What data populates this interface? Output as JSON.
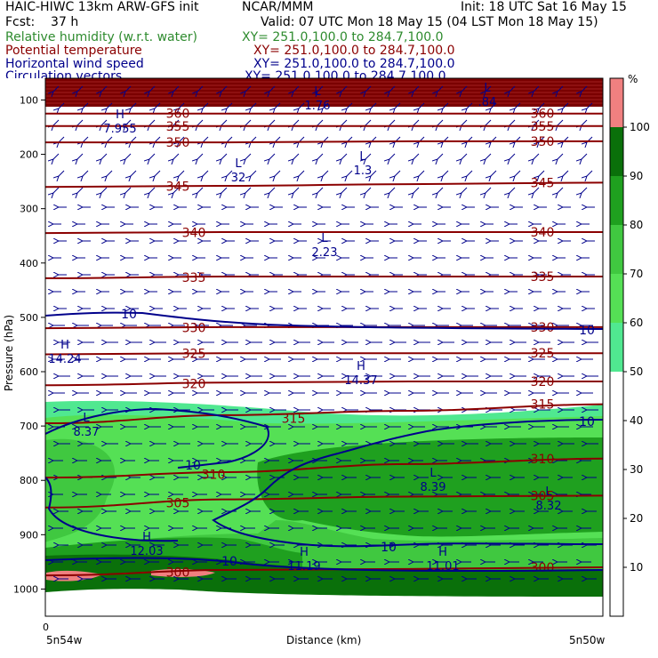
{
  "header": {
    "title": "HAIC-HIWC 13km ARW-GFS init",
    "center": "NCAR/MMM",
    "init": "Init: 18 UTC Sat 16 May 15",
    "fcst": "Fcst:    37 h",
    "valid": "Valid: 07 UTC Mon 18 May 15 (04 LST Mon 18 May 15)"
  },
  "legend": [
    {
      "label": "Relative humidity (w.r.t. water)",
      "xy": "XY= 251.0,100.0 to 284.7,100.0",
      "color": "#2e8b2e"
    },
    {
      "label": "Potential temperature",
      "xy": "XY= 251.0,100.0 to 284.7,100.0",
      "color": "#8b0000"
    },
    {
      "label": "Horizontal wind speed",
      "xy": "XY= 251.0,100.0 to 284.7,100.0",
      "color": "#00008b"
    },
    {
      "label": "Circulation vectors",
      "xy": "XY= 251.0,100.0 to 284.7,100.0",
      "color": "#00008b"
    }
  ],
  "chart_data": {
    "type": "cross-section",
    "ylabel": "Pressure (hPa)",
    "xlabel": "Distance (km)",
    "x_left_label": "5n54w",
    "x_right_label": "5n50w",
    "x_start_tick": "0",
    "yticks": [
      100,
      200,
      300,
      400,
      500,
      600,
      700,
      800,
      900,
      1000
    ],
    "ylim": [
      1050,
      60
    ],
    "colorbar": {
      "unit": "%",
      "ticks": [
        10,
        20,
        30,
        40,
        50,
        60,
        70,
        80,
        90,
        100
      ],
      "range": [
        0,
        110
      ],
      "bands": [
        {
          "from": 50,
          "to": 60,
          "color": "#50e890"
        },
        {
          "from": 60,
          "to": 70,
          "color": "#55e055"
        },
        {
          "from": 70,
          "to": 80,
          "color": "#40c840"
        },
        {
          "from": 80,
          "to": 90,
          "color": "#1fa01f"
        },
        {
          "from": 90,
          "to": 100,
          "color": "#0a700a"
        },
        {
          "from": 100,
          "to": 110,
          "color": "#f08080"
        }
      ]
    },
    "theta_contours": [
      {
        "label": "300",
        "p": [
          975,
          965,
          963,
          960
        ]
      },
      {
        "label": "305",
        "p": [
          850,
          835,
          830,
          828
        ]
      },
      {
        "label": "310",
        "p": [
          795,
          785,
          770,
          760
        ]
      },
      {
        "label": "315",
        "p": [
          695,
          680,
          672,
          660
        ]
      },
      {
        "label": "320",
        "p": [
          625,
          620,
          618,
          618
        ]
      },
      {
        "label": "325",
        "p": [
          568,
          566,
          566,
          566
        ]
      },
      {
        "label": "330",
        "p": [
          520,
          518,
          518,
          518
        ]
      },
      {
        "label": "335",
        "p": [
          428,
          425,
          425,
          425
        ]
      },
      {
        "label": "340",
        "p": [
          345,
          343,
          343,
          343
        ]
      },
      {
        "label": "345",
        "p": [
          260,
          258,
          255,
          252
        ]
      },
      {
        "label": "350",
        "p": [
          178,
          178,
          176,
          176
        ]
      },
      {
        "label": "355",
        "p": [
          148,
          148,
          148,
          148
        ]
      },
      {
        "label": "360",
        "p": [
          125,
          125,
          125,
          125
        ]
      }
    ],
    "wind_labels": [
      "10",
      "10",
      "10",
      "10",
      "10",
      "10"
    ],
    "extrema": [
      {
        "type": "L",
        "value": "1.76"
      },
      {
        "type": "L",
        "value": ".84"
      },
      {
        "type": "H",
        "value": "7.955"
      },
      {
        "type": "L",
        "value": "1.3"
      },
      {
        "type": "L",
        "value": "32"
      },
      {
        "type": "L",
        "value": "2.23"
      },
      {
        "type": "H",
        "value": "14.24"
      },
      {
        "type": "H",
        "value": "14.37"
      },
      {
        "type": "L",
        "value": "8.37"
      },
      {
        "type": "L",
        "value": "8.39"
      },
      {
        "type": "L",
        "value": "8.32"
      },
      {
        "type": "H",
        "value": "12.03"
      },
      {
        "type": "H",
        "value": "11.19"
      },
      {
        "type": "H",
        "value": "11.01"
      }
    ]
  }
}
